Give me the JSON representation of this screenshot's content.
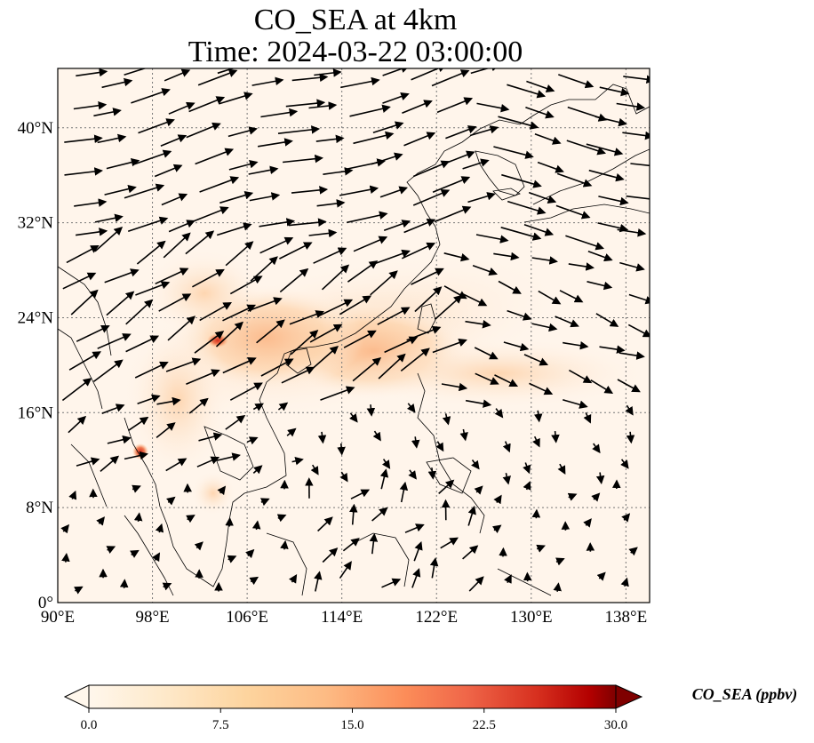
{
  "title_line1": "CO_SEA at 4km",
  "title_line2": "Time: 2024-03-22 03:00:00",
  "map": {
    "lon_range": [
      90,
      140
    ],
    "lat_range": [
      0,
      45
    ],
    "lon_ticks": [
      90,
      98,
      106,
      114,
      122,
      130,
      138
    ],
    "lon_tick_labels": [
      "90°E",
      "98°E",
      "106°E",
      "114°E",
      "122°E",
      "130°E",
      "138°E"
    ],
    "lat_ticks": [
      0,
      8,
      16,
      24,
      32,
      40
    ],
    "lat_tick_labels": [
      "0°",
      "8°N",
      "16°N",
      "24°N",
      "32°N",
      "40°N"
    ],
    "gridlines": true,
    "field_colors": [
      "#fff5eb",
      "#fdd9b1",
      "#fca567",
      "#e5521c",
      "#8b0000"
    ],
    "wind_vector_color": "#000000"
  },
  "colorbar": {
    "label": "CO_SEA (ppbv)",
    "min": 0.0,
    "max": 30.0,
    "ticks": [
      0.0,
      7.5,
      15.0,
      22.5,
      30.0
    ],
    "tick_labels": [
      "0.0",
      "7.5",
      "15.0",
      "22.5",
      "30.0"
    ],
    "colormap": "OrRd",
    "extend": "both"
  }
}
